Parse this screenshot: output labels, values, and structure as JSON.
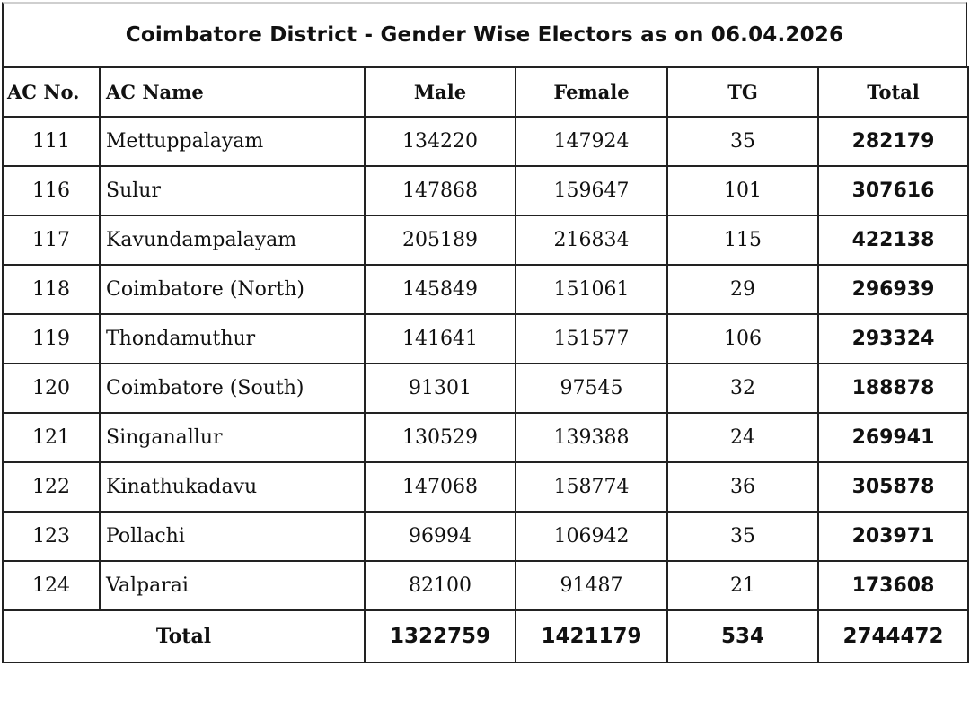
{
  "title": "Coimbatore District - Gender Wise Electors as on 06.04.2026",
  "headers": {
    "ac_no": "AC No.",
    "ac_name": "AC Name",
    "male": "Male",
    "female": "Female",
    "tg": "TG",
    "total": "Total"
  },
  "rows": [
    {
      "ac_no": "111",
      "ac_name": "Mettuppalayam",
      "male": "134220",
      "female": "147924",
      "tg": "35",
      "total": "282179"
    },
    {
      "ac_no": "116",
      "ac_name": "Sulur",
      "male": "147868",
      "female": "159647",
      "tg": "101",
      "total": "307616"
    },
    {
      "ac_no": "117",
      "ac_name": "Kavundampalayam",
      "male": "205189",
      "female": "216834",
      "tg": "115",
      "total": "422138"
    },
    {
      "ac_no": "118",
      "ac_name": "Coimbatore (North)",
      "male": "145849",
      "female": "151061",
      "tg": "29",
      "total": "296939"
    },
    {
      "ac_no": "119",
      "ac_name": "Thondamuthur",
      "male": "141641",
      "female": "151577",
      "tg": "106",
      "total": "293324"
    },
    {
      "ac_no": "120",
      "ac_name": "Coimbatore (South)",
      "male": "91301",
      "female": "97545",
      "tg": "32",
      "total": "188878"
    },
    {
      "ac_no": "121",
      "ac_name": "Singanallur",
      "male": "130529",
      "female": "139388",
      "tg": "24",
      "total": "269941"
    },
    {
      "ac_no": "122",
      "ac_name": "Kinathukadavu",
      "male": "147068",
      "female": "158774",
      "tg": "36",
      "total": "305878"
    },
    {
      "ac_no": "123",
      "ac_name": "Pollachi",
      "male": "96994",
      "female": "106942",
      "tg": "35",
      "total": "203971"
    },
    {
      "ac_no": "124",
      "ac_name": "Valparai",
      "male": "82100",
      "female": "91487",
      "tg": "21",
      "total": "173608"
    }
  ],
  "totals": {
    "label": "Total",
    "male": "1322759",
    "female": "1421179",
    "tg": "534",
    "total": "2744472"
  }
}
